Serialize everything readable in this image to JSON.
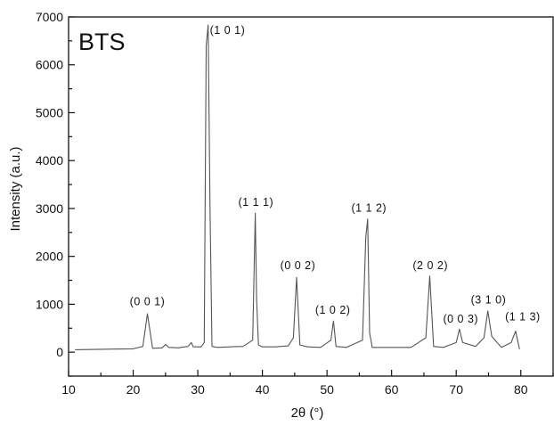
{
  "chart_data": {
    "type": "line",
    "panel_label": "BTS",
    "xlabel": "2θ (°)",
    "ylabel": "Intensity (a.u.)",
    "xlim": [
      10,
      85
    ],
    "ylim": [
      -500,
      7000
    ],
    "x_ticks": [
      10,
      20,
      30,
      40,
      50,
      60,
      70,
      80
    ],
    "y_ticks": [
      0,
      1000,
      2000,
      3000,
      4000,
      5000,
      6000,
      7000
    ],
    "grid": false,
    "line_color": "#555555",
    "series": [
      {
        "x": [
          11.0,
          15.0,
          20.0,
          21.5,
          22.2,
          23.0,
          24.5,
          25.0,
          25.5,
          27.0,
          28.5,
          29.0,
          29.3,
          30.5,
          31.0,
          31.3,
          31.6,
          31.9,
          32.2,
          33.0,
          35.0,
          37.0,
          38.5,
          38.9,
          39.1,
          39.4,
          40.0,
          42.0,
          44.0,
          44.8,
          45.3,
          45.8,
          47.0,
          49.0,
          50.6,
          51.0,
          51.4,
          53.0,
          55.5,
          56.0,
          56.3,
          56.6,
          57.0,
          60.0,
          63.0,
          65.3,
          65.9,
          66.5,
          68.0,
          70.0,
          70.5,
          71.0,
          73.0,
          74.3,
          74.9,
          75.5,
          77.0,
          78.5,
          79.2,
          79.8
        ],
        "y": [
          50,
          60,
          70,
          120,
          800,
          80,
          90,
          160,
          100,
          90,
          120,
          200,
          110,
          110,
          200,
          6400,
          6830,
          3000,
          120,
          100,
          110,
          120,
          250,
          2900,
          1100,
          150,
          110,
          110,
          130,
          300,
          1560,
          150,
          110,
          100,
          250,
          650,
          120,
          100,
          250,
          2400,
          2780,
          400,
          100,
          100,
          100,
          300,
          1590,
          120,
          100,
          200,
          480,
          200,
          120,
          300,
          860,
          330,
          100,
          200,
          440,
          60
        ]
      }
    ],
    "peak_labels": [
      {
        "text": "(0 0 1)",
        "x": 22.2,
        "y": 980
      },
      {
        "text": "(1 0 1)",
        "x": 34.6,
        "y": 6650
      },
      {
        "text": "(1 1 1)",
        "x": 39.0,
        "y": 3050
      },
      {
        "text": "(0 0 2)",
        "x": 45.5,
        "y": 1730
      },
      {
        "text": "(1 0 2)",
        "x": 50.9,
        "y": 800
      },
      {
        "text": "(1 1 2)",
        "x": 56.5,
        "y": 2930
      },
      {
        "text": "(2 0 2)",
        "x": 66.0,
        "y": 1730
      },
      {
        "text": "(0 0 3)",
        "x": 70.7,
        "y": 620
      },
      {
        "text": "(3 1 0)",
        "x": 75.0,
        "y": 1020
      },
      {
        "text": "(1 1 3)",
        "x": 80.3,
        "y": 660
      }
    ]
  }
}
